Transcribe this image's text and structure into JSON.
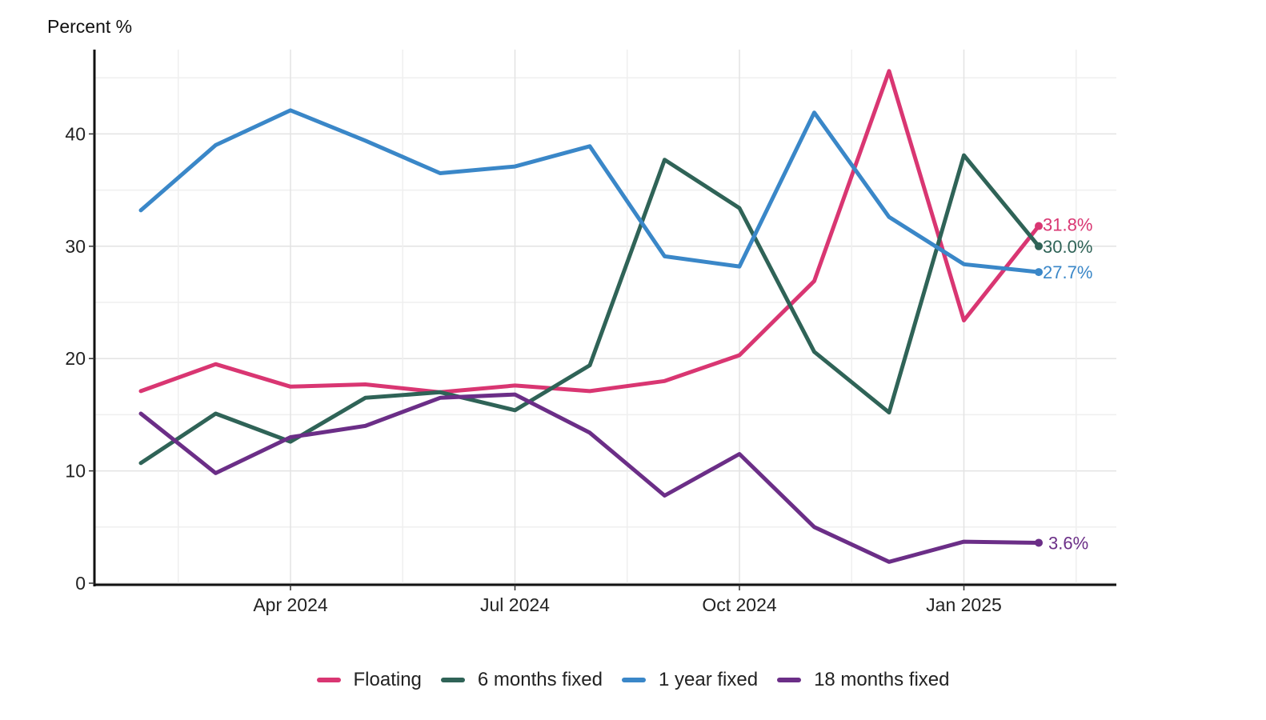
{
  "chart_data": {
    "type": "line",
    "title": "",
    "ylabel": "Percent %",
    "xlabel": "",
    "x": [
      "2024-02",
      "2024-03",
      "2024-04",
      "2024-05",
      "2024-06",
      "2024-07",
      "2024-08",
      "2024-09",
      "2024-10",
      "2024-11",
      "2024-12",
      "2025-01",
      "2025-02"
    ],
    "x_ticks": [
      {
        "date": "2024-04",
        "label": "Apr 2024"
      },
      {
        "date": "2024-07",
        "label": "Jul 2024"
      },
      {
        "date": "2024-10",
        "label": "Oct 2024"
      },
      {
        "date": "2025-01",
        "label": "Jan 2025"
      }
    ],
    "y_ticks": [
      0,
      10,
      20,
      30,
      40
    ],
    "ylim": [
      0,
      46
    ],
    "grid": true,
    "legend_position": "bottom",
    "series": [
      {
        "name": "Floating",
        "color": "#d93672",
        "end_label": "31.8%",
        "values": [
          17.1,
          19.5,
          17.5,
          17.7,
          17.0,
          17.6,
          17.1,
          18.0,
          20.3,
          26.9,
          45.6,
          23.4,
          31.8
        ]
      },
      {
        "name": "6 months fixed",
        "color": "#2f6357",
        "end_label": "30.0%",
        "values": [
          10.7,
          15.1,
          12.6,
          16.5,
          17.0,
          15.4,
          19.4,
          37.7,
          33.4,
          20.6,
          15.2,
          38.1,
          30.0
        ]
      },
      {
        "name": "1 year fixed",
        "color": "#3a87c8",
        "end_label": "27.7%",
        "values": [
          33.2,
          39.0,
          42.1,
          39.4,
          36.5,
          37.1,
          38.9,
          29.1,
          28.2,
          41.9,
          32.6,
          28.4,
          27.7
        ]
      },
      {
        "name": "18 months fixed",
        "color": "#6b2e87",
        "end_label": "3.6%",
        "values": [
          15.1,
          9.8,
          13.0,
          14.0,
          16.5,
          16.8,
          13.4,
          7.8,
          11.5,
          5.0,
          1.9,
          3.7,
          3.6
        ]
      }
    ]
  }
}
